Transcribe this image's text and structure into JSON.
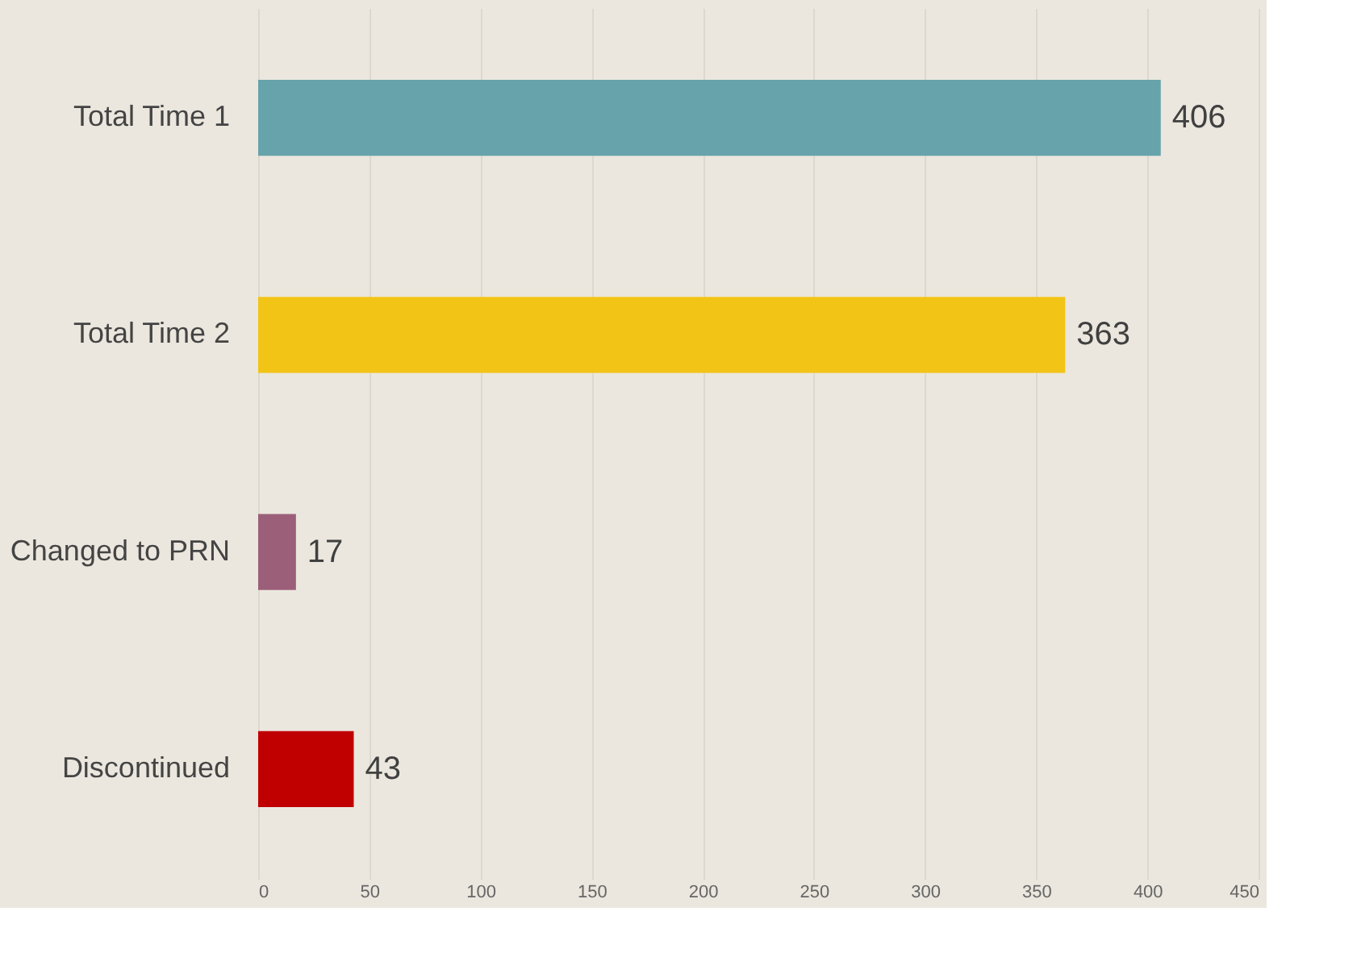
{
  "chart_data": {
    "type": "bar",
    "orientation": "horizontal",
    "categories": [
      "Total Time 1",
      "Total Time 2",
      "Changed to PRN",
      "Discontinued"
    ],
    "values": [
      406,
      363,
      17,
      43
    ],
    "colors": [
      "#67a3ab",
      "#f2c416",
      "#9c5f7a",
      "#c00000"
    ],
    "xlim": [
      0,
      450
    ],
    "xticks": [
      0,
      50,
      100,
      150,
      200,
      250,
      300,
      350,
      400,
      450
    ],
    "grid": "x",
    "data_labels": true
  }
}
